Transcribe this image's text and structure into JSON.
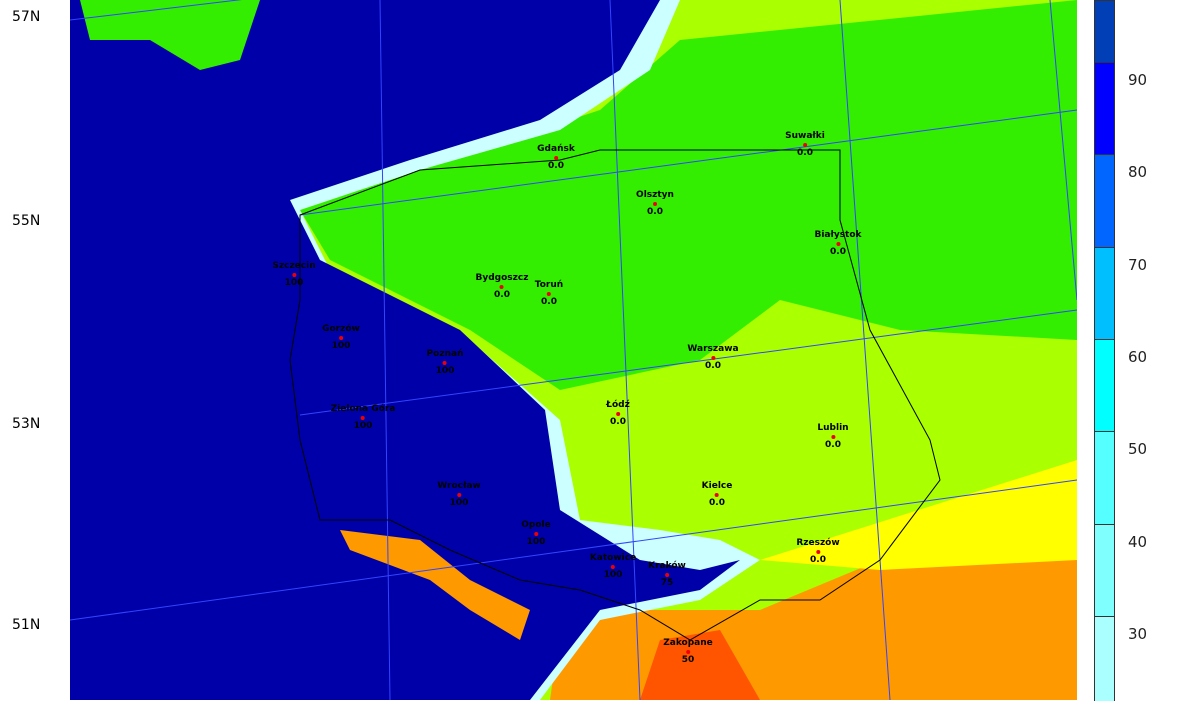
{
  "latitude_labels": [
    "57N",
    "55N",
    "53N",
    "51N"
  ],
  "colorbar": {
    "labels": [
      "90",
      "80",
      "70",
      "60",
      "50",
      "40",
      "30"
    ],
    "colors": [
      "#003fb5",
      "#0000ff",
      "#0066ff",
      "#00bfff",
      "#00ffff",
      "#55ffff",
      "#80ffff",
      "#aaffff"
    ]
  },
  "colors": {
    "sea_ocean": "#0000a8",
    "green": "#33ee00",
    "yellowgreen": "#aaff00",
    "yellow": "#ffff00",
    "orange": "#ff9900",
    "red": "#ff5500",
    "pale_cyan": "#ccffff"
  },
  "cities": [
    {
      "name": "Gdańsk",
      "value": "0.0"
    },
    {
      "name": "Suwałki",
      "value": "0.0"
    },
    {
      "name": "Olsztyn",
      "value": "0.0"
    },
    {
      "name": "Białystok",
      "value": "0.0"
    },
    {
      "name": "Szczecin",
      "value": "100"
    },
    {
      "name": "Bydgoszcz",
      "value": "0.0"
    },
    {
      "name": "Toruń",
      "value": "0.0"
    },
    {
      "name": "Gorzów",
      "value": "100"
    },
    {
      "name": "Poznań",
      "value": "100"
    },
    {
      "name": "Warszawa",
      "value": "0.0"
    },
    {
      "name": "Zielona  Góra",
      "value": "100"
    },
    {
      "name": "Łódź",
      "value": "0.0"
    },
    {
      "name": "Lublin",
      "value": "0.0"
    },
    {
      "name": "Wrocław",
      "value": "100"
    },
    {
      "name": "Kielce",
      "value": "0.0"
    },
    {
      "name": "Opole",
      "value": "100"
    },
    {
      "name": "Rzeszów",
      "value": "0.0"
    },
    {
      "name": "Katowice",
      "value": "100"
    },
    {
      "name": "Kraków",
      "value": "75"
    },
    {
      "name": "Zakopane",
      "value": "50"
    }
  ]
}
